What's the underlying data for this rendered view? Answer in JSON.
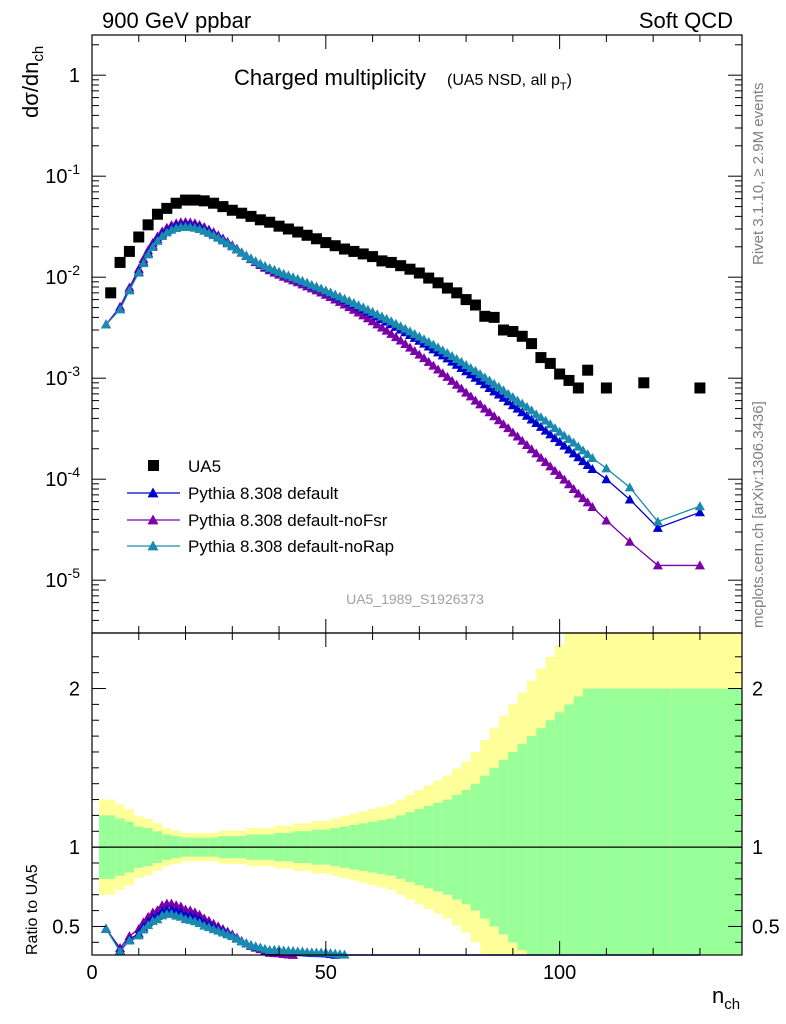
{
  "header": {
    "left": "900 GeV ppbar",
    "right": "Soft QCD"
  },
  "side": {
    "rivet": "Rivet 3.1.10, ≥ 2.9M events",
    "mcplots": "mcplots.cern.ch [arXiv:1306.3436]"
  },
  "chart_data": {
    "type": "scatter",
    "title": "Charged multiplicity",
    "subtitle": "(UA5 NSD, all p_T)",
    "ylabel": "dσ/dn_ch",
    "xlabel": "n_ch",
    "ratio_ylabel": "Ratio to UA5",
    "analysis": "UA5_1989_S1926373",
    "xlim": [
      0,
      139
    ],
    "ylim": [
      3e-06,
      2.5
    ],
    "yscale": "log",
    "ratio_ylim": [
      0.32,
      2.35
    ],
    "ratio_ticks": [
      "0.5",
      "1",
      "2"
    ],
    "x_ticks": [
      "0",
      "50",
      "100"
    ],
    "y_ticks": [
      "1",
      "10^-1",
      "10^-2",
      "10^-3",
      "10^-4",
      "10^-5"
    ],
    "legend_position": "bottom-left",
    "legend": [
      "UA5",
      "Pythia 8.308 default",
      "Pythia 8.308 default-noFsr",
      "Pythia 8.308 default-noRap"
    ],
    "colors": {
      "data": "#000000",
      "default": "#0000cc",
      "noFsr": "#7a00a8",
      "noRap": "#1a8ab0",
      "band_inner": "#99ff99",
      "band_outer": "#ffff99"
    },
    "data": {
      "x": [
        4,
        6,
        8,
        10,
        12,
        14,
        16,
        18,
        20,
        22,
        24,
        26,
        28,
        30,
        32,
        34,
        36,
        38,
        40,
        42,
        44,
        46,
        48,
        50,
        52,
        54,
        56,
        58,
        60,
        62,
        64,
        66,
        68,
        70,
        72,
        74,
        76,
        78,
        80,
        82,
        84,
        86,
        88,
        90,
        92,
        94,
        96,
        98,
        100,
        102,
        104,
        106,
        110,
        118,
        130
      ],
      "y": [
        0.007,
        0.014,
        0.018,
        0.025,
        0.033,
        0.042,
        0.048,
        0.054,
        0.058,
        0.058,
        0.057,
        0.054,
        0.05,
        0.046,
        0.043,
        0.04,
        0.037,
        0.035,
        0.032,
        0.03,
        0.028,
        0.026,
        0.024,
        0.022,
        0.0205,
        0.019,
        0.018,
        0.017,
        0.016,
        0.0145,
        0.014,
        0.013,
        0.012,
        0.011,
        0.0098,
        0.0088,
        0.0078,
        0.007,
        0.006,
        0.0053,
        0.0041,
        0.004,
        0.003,
        0.0029,
        0.0026,
        0.0022,
        0.0016,
        0.0014,
        0.0011,
        0.00095,
        0.0008,
        0.0012,
        0.0008,
        0.0009,
        0.0008
      ],
      "y_err_rel": [
        0.2,
        0.18,
        0.16,
        0.13,
        0.12,
        0.1,
        0.08,
        0.07,
        0.06,
        0.06,
        0.06,
        0.06,
        0.07,
        0.07,
        0.07,
        0.08,
        0.08,
        0.08,
        0.09,
        0.09,
        0.1,
        0.1,
        0.11,
        0.11,
        0.12,
        0.13,
        0.14,
        0.15,
        0.16,
        0.17,
        0.18,
        0.2,
        0.22,
        0.24,
        0.26,
        0.28,
        0.3,
        0.33,
        0.36,
        0.4,
        0.45,
        0.5,
        0.55,
        0.6,
        0.65,
        0.7,
        0.75,
        0.8,
        0.85,
        0.9,
        0.95,
        1.0,
        1.0,
        1.0,
        1.0
      ]
    },
    "series": [
      {
        "name": "Pythia 8.308 default",
        "x": [
          3,
          6,
          8,
          10,
          11,
          12,
          13,
          14,
          15,
          16,
          17,
          18,
          19,
          20,
          21,
          22,
          23,
          24,
          25,
          26,
          27,
          28,
          29,
          30,
          31,
          32,
          33,
          34,
          35,
          36,
          37,
          38,
          39,
          40,
          41,
          42,
          43,
          44,
          45,
          46,
          47,
          48,
          49,
          50,
          51,
          52,
          53,
          54,
          55,
          56,
          57,
          58,
          59,
          60,
          61,
          62,
          63,
          64,
          65,
          66,
          67,
          68,
          69,
          70,
          71,
          72,
          73,
          74,
          75,
          76,
          77,
          78,
          79,
          80,
          81,
          82,
          83,
          84,
          85,
          86,
          87,
          88,
          89,
          90,
          91,
          92,
          93,
          94,
          95,
          96,
          97,
          98,
          99,
          100,
          101,
          102,
          103,
          104,
          105,
          106,
          107,
          110,
          115,
          121,
          130
        ],
        "y": [
          0.0034,
          0.0049,
          0.0075,
          0.0114,
          0.0142,
          0.0174,
          0.0206,
          0.0238,
          0.0267,
          0.029,
          0.0308,
          0.0322,
          0.0329,
          0.0332,
          0.0329,
          0.0323,
          0.0313,
          0.0299,
          0.0284,
          0.0268,
          0.0251,
          0.0235,
          0.0219,
          0.0204,
          0.0189,
          0.0175,
          0.0163,
          0.0153,
          0.0143,
          0.0135,
          0.0128,
          0.0122,
          0.0117,
          0.0112,
          0.0107,
          0.0103,
          0.0099,
          0.0095,
          0.0091,
          0.0087,
          0.0083,
          0.00797,
          0.00762,
          0.00727,
          0.00693,
          0.0066,
          0.00628,
          0.00597,
          0.00567,
          0.00538,
          0.0051,
          0.00483,
          0.00457,
          0.00432,
          0.00408,
          0.00385,
          0.00363,
          0.00342,
          0.00322,
          0.00303,
          0.00285,
          0.00268,
          0.00251,
          0.00235,
          0.0022,
          0.00206,
          0.00193,
          0.0018,
          0.00168,
          0.00157,
          0.00146,
          0.00136,
          0.00126,
          0.00117,
          0.00109,
          0.00101,
          0.00094,
          0.00087,
          0.0008,
          0.00074,
          0.00069,
          0.00064,
          0.00059,
          0.00054,
          0.0005,
          0.00046,
          0.000425,
          0.00039,
          0.00036,
          0.00033,
          0.000303,
          0.000278,
          0.000255,
          0.000234,
          0.000215,
          0.000197,
          0.00018,
          0.000165,
          0.000151,
          0.000138,
          0.000126,
          0.0001,
          6.3e-05,
          3.3e-05,
          4.7e-05
        ]
      },
      {
        "name": "Pythia 8.308 default-noFsr",
        "x": [
          3,
          6,
          8,
          10,
          11,
          12,
          13,
          14,
          15,
          16,
          17,
          18,
          19,
          20,
          21,
          22,
          23,
          24,
          25,
          26,
          27,
          28,
          29,
          30,
          31,
          32,
          33,
          34,
          35,
          36,
          37,
          38,
          39,
          40,
          41,
          42,
          43,
          44,
          45,
          46,
          47,
          48,
          49,
          50,
          51,
          52,
          53,
          54,
          55,
          56,
          57,
          58,
          59,
          60,
          61,
          62,
          63,
          64,
          65,
          66,
          67,
          68,
          69,
          70,
          71,
          72,
          73,
          74,
          75,
          76,
          77,
          78,
          79,
          80,
          81,
          82,
          83,
          84,
          85,
          86,
          87,
          88,
          89,
          90,
          91,
          92,
          93,
          94,
          95,
          96,
          97,
          98,
          99,
          100,
          101,
          102,
          103,
          104,
          105,
          106,
          107,
          110,
          115,
          121,
          130
        ],
        "y": [
          0.0034,
          0.0051,
          0.0079,
          0.0121,
          0.0151,
          0.0185,
          0.0219,
          0.0253,
          0.0284,
          0.0309,
          0.0328,
          0.0342,
          0.035,
          0.0352,
          0.0349,
          0.0342,
          0.033,
          0.0314,
          0.0297,
          0.0279,
          0.026,
          0.0242,
          0.0224,
          0.0207,
          0.0191,
          0.0176,
          0.0163,
          0.0151,
          0.0141,
          0.0132,
          0.0124,
          0.0117,
          0.0111,
          0.0106,
          0.0101,
          0.0097,
          0.0093,
          0.0089,
          0.0085,
          0.0081,
          0.00775,
          0.0074,
          0.00705,
          0.0067,
          0.00636,
          0.00602,
          0.00569,
          0.00537,
          0.00506,
          0.00476,
          0.00447,
          0.00419,
          0.00392,
          0.00366,
          0.00341,
          0.00318,
          0.00296,
          0.00275,
          0.00255,
          0.00236,
          0.00218,
          0.00201,
          0.00186,
          0.00171,
          0.00158,
          0.00145,
          0.00133,
          0.00122,
          0.00112,
          0.00103,
          0.00094,
          0.00086,
          0.00079,
          0.00072,
          0.00066,
          0.0006,
          0.00055,
          0.0005,
          0.00046,
          0.00042,
          0.000383,
          0.00035,
          0.00032,
          0.00029,
          0.000265,
          0.00024,
          0.000218,
          0.000198,
          0.00018,
          0.000163,
          0.000148,
          0.000134,
          0.000121,
          0.00011,
          9.9e-05,
          8.9e-05,
          8e-05,
          7.2e-05,
          6.5e-05,
          5.9e-05,
          5.3e-05,
          3.9e-05,
          2.4e-05,
          1.4e-05,
          1.4e-05
        ]
      },
      {
        "name": "Pythia 8.308 default-noRap",
        "x": [
          3,
          6,
          8,
          10,
          11,
          12,
          13,
          14,
          15,
          16,
          17,
          18,
          19,
          20,
          21,
          22,
          23,
          24,
          25,
          26,
          27,
          28,
          29,
          30,
          31,
          32,
          33,
          34,
          35,
          36,
          37,
          38,
          39,
          40,
          41,
          42,
          43,
          44,
          45,
          46,
          47,
          48,
          49,
          50,
          51,
          52,
          53,
          54,
          55,
          56,
          57,
          58,
          59,
          60,
          61,
          62,
          63,
          64,
          65,
          66,
          67,
          68,
          69,
          70,
          71,
          72,
          73,
          74,
          75,
          76,
          77,
          78,
          79,
          80,
          81,
          82,
          83,
          84,
          85,
          86,
          87,
          88,
          89,
          90,
          91,
          92,
          93,
          94,
          95,
          96,
          97,
          98,
          99,
          100,
          101,
          102,
          103,
          104,
          105,
          106,
          107,
          110,
          115,
          121,
          130
        ],
        "y": [
          0.0034,
          0.0048,
          0.0074,
          0.0111,
          0.0138,
          0.0168,
          0.0199,
          0.0229,
          0.0256,
          0.0278,
          0.0295,
          0.0307,
          0.0314,
          0.0317,
          0.0314,
          0.0309,
          0.03,
          0.0288,
          0.0275,
          0.0261,
          0.0246,
          0.0231,
          0.0216,
          0.0202,
          0.0188,
          0.0175,
          0.0163,
          0.0153,
          0.0144,
          0.0136,
          0.0129,
          0.0123,
          0.0118,
          0.0113,
          0.0108,
          0.0104,
          0.01,
          0.0096,
          0.0092,
          0.0088,
          0.0084,
          0.00806,
          0.00772,
          0.00738,
          0.00705,
          0.00673,
          0.00642,
          0.00612,
          0.00583,
          0.00555,
          0.00528,
          0.00502,
          0.00477,
          0.00453,
          0.0043,
          0.00408,
          0.00387,
          0.00366,
          0.00346,
          0.00327,
          0.00309,
          0.00291,
          0.00274,
          0.00258,
          0.00243,
          0.00229,
          0.00215,
          0.00202,
          0.00189,
          0.00177,
          0.00166,
          0.00155,
          0.00145,
          0.00135,
          0.00126,
          0.00118,
          0.0011,
          0.00102,
          0.00095,
          0.00088,
          0.00082,
          0.00076,
          0.0007,
          0.00065,
          0.0006,
          0.00056,
          0.00052,
          0.00048,
          0.00044,
          0.00041,
          0.00038,
          0.00035,
          0.00032,
          0.000295,
          0.00027,
          0.00025,
          0.00023,
          0.00021,
          0.000193,
          0.000177,
          0.000162,
          0.000128,
          8.3e-05,
          3.8e-05,
          5.4e-05
        ]
      }
    ]
  }
}
